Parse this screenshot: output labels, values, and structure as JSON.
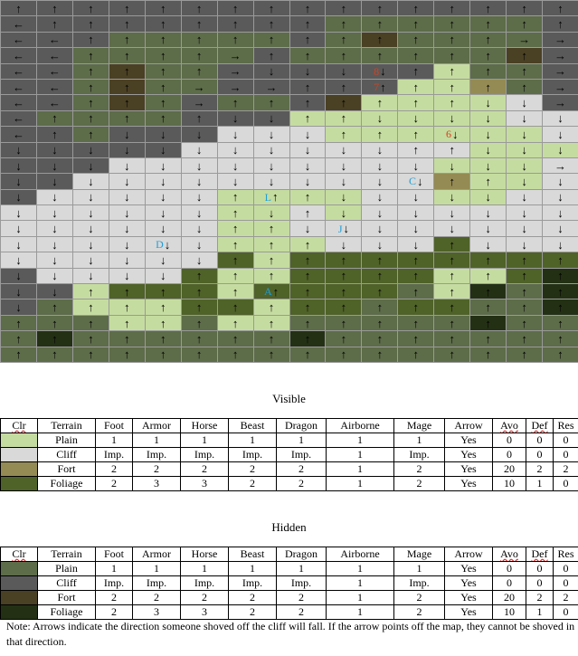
{
  "colors": {
    "P": "#c5dca0",
    "C": "#d9d9d9",
    "F": "#948a54",
    "G": "#4f6228",
    "p": "#5d6c49",
    "c": "#5a5a5a",
    "f": "#4a4024",
    "g": "#233014"
  },
  "map": {
    "rows": [
      "cccccccccccccccc",
      "cccccccccppppppc",
      "cccpppppcpfppppc",
      "ccpppppcppppppfc",
      "ccpfppccccccPppc",
      "ccpfppcccccPPFpc",
      "ccpfpcppcfPPPPCc",
      "cppppcccPPPPPPCC",
      "ccpcccCCCPPPPPPC",
      "cccccCCCCCCCCPPP",
      "cccCCCCCCCCCPPPC",
      "ccCCCCCCCCCCFPPC",
      "cCCCCCPPPPCCPPCC",
      "CCCCCCPPCPCCCCCC",
      "CCCCCCPPCCCCCCCC",
      "CCCCCCPPPCCCGCCC",
      "CCCCCCGPGGGGGGGG",
      "cCCCCGPPGGGGPPGg",
      "ccPGGGPGGGGpPgpg",
      "cpPPPGGPGGpGGppg",
      "pppPPpPPpppppgpp",
      "pgppppppgppppppp",
      "pppppppppppppppp"
    ],
    "arrows": [
      "↑↑↑↑↑↑↑↑↑↑↑↑↑↑↑↑",
      "←↑↑↑↑↑↑↑↑↑↑↑↑↑↑↑",
      "←←↑↑↑↑↑↑↑↑↑↑↑↑→→",
      "←←↑↑↑↑→↑↑↑↑↑↑↑↑→",
      "←←↑↑↑↑→↓↓↓↓↑↑↑↑→",
      "←←↑↑↑→→→↑↑↑↑↑↑↑→",
      "←←↑↑↑→↑↑↑↑↑↑↑↓↓→",
      "←↑↑↑↑↑↓↓↑↑↓↓↓↓↓↓",
      "←↑↑↓↓↓↓↓↓↑↑↑↓↓↓↓",
      "↓↓↓↓↓↓↓↓↓↓↓↑↑↓↓↓",
      "↓↓↓↓↓↓↓↓↓↓↓↓↓↓↓→",
      "↓↓↓↓↓↓↓↓↓↓↓↓↑↑↓↓",
      "↓↓↓↓↓↓↑↑↑↓↓↓↓↓↓↓",
      "↓↓↓↓↓↓↑↓↑↓↓↓↓↓↓↓",
      "↓↓↓↓↓↓↑↑↓↓↓↓↓↓↓↓",
      "↓↓↓↓↓↓↑↑↑↓↓↓↑↓↓↓",
      "↓↓↓↓↓↓↑↑↑↑↑↑↑↑↑↑",
      "↓↓↓↓↓↑↑↑↑↑↑↑↑↑↑↑",
      "↓↓↑↑↑↑↑↑↑↑↑↑↑↑↑↑",
      "↓↑↑↑↑↑↑↑↑↑↑↑↑↑↑↑",
      "↑↑↑↑↑↑↑↑↑↑↑↑↑↑↑↑",
      "↑↑↑↑↑↑↑↑↑↑↑↑↑↑↑↑",
      "↑↑↑↑↑↑↑↑↑↑↑↑↑↑↑↑"
    ],
    "markers": [
      {
        "row": 4,
        "col": 10,
        "label": "8",
        "color": "red"
      },
      {
        "row": 5,
        "col": 10,
        "label": "7",
        "color": "red"
      },
      {
        "row": 8,
        "col": 12,
        "label": "6",
        "color": "red"
      },
      {
        "row": 11,
        "col": 11,
        "label": "C",
        "color": "cyan"
      },
      {
        "row": 12,
        "col": 7,
        "label": "L",
        "color": "cyan"
      },
      {
        "row": 14,
        "col": 9,
        "label": "J",
        "color": "cyan"
      },
      {
        "row": 15,
        "col": 4,
        "label": "D",
        "color": "cyan"
      },
      {
        "row": 18,
        "col": 7,
        "label": "A",
        "color": "cyan"
      }
    ]
  },
  "headers": [
    "Clr",
    "Terrain",
    "Foot",
    "Armor",
    "Horse",
    "Beast",
    "Dragon",
    "Airborne",
    "Mage",
    "Arrow",
    "Avo",
    "Def",
    "Res"
  ],
  "visible": {
    "title": "Visible",
    "rows": [
      {
        "color": "#c5dca0",
        "cells": [
          "Plain",
          "1",
          "1",
          "1",
          "1",
          "1",
          "1",
          "1",
          "Yes",
          "0",
          "0",
          "0"
        ]
      },
      {
        "color": "#d9d9d9",
        "cells": [
          "Cliff",
          "Imp.",
          "Imp.",
          "Imp.",
          "Imp.",
          "Imp.",
          "1",
          "Imp.",
          "Yes",
          "0",
          "0",
          "0"
        ]
      },
      {
        "color": "#948a54",
        "cells": [
          "Fort",
          "2",
          "2",
          "2",
          "2",
          "2",
          "1",
          "2",
          "Yes",
          "20",
          "2",
          "2"
        ]
      },
      {
        "color": "#4f6228",
        "cells": [
          "Foliage",
          "2",
          "3",
          "3",
          "2",
          "2",
          "1",
          "2",
          "Yes",
          "10",
          "1",
          "0"
        ]
      }
    ]
  },
  "hidden": {
    "title": "Hidden",
    "rows": [
      {
        "color": "#5d6c49",
        "cells": [
          "Plain",
          "1",
          "1",
          "1",
          "1",
          "1",
          "1",
          "1",
          "Yes",
          "0",
          "0",
          "0"
        ]
      },
      {
        "color": "#5a5a5a",
        "cells": [
          "Cliff",
          "Imp.",
          "Imp.",
          "Imp.",
          "Imp.",
          "Imp.",
          "1",
          "Imp.",
          "Yes",
          "0",
          "0",
          "0"
        ]
      },
      {
        "color": "#4a4024",
        "cells": [
          "Fort",
          "2",
          "2",
          "2",
          "2",
          "2",
          "1",
          "2",
          "Yes",
          "20",
          "2",
          "2"
        ]
      },
      {
        "color": "#233014",
        "cells": [
          "Foliage",
          "2",
          "3",
          "3",
          "2",
          "2",
          "1",
          "2",
          "Yes",
          "10",
          "1",
          "0"
        ]
      }
    ]
  },
  "note": "Note: Arrows indicate the direction someone shoved off the cliff will fall.  If the arrow points off the map, they cannot be shoved in that direction."
}
